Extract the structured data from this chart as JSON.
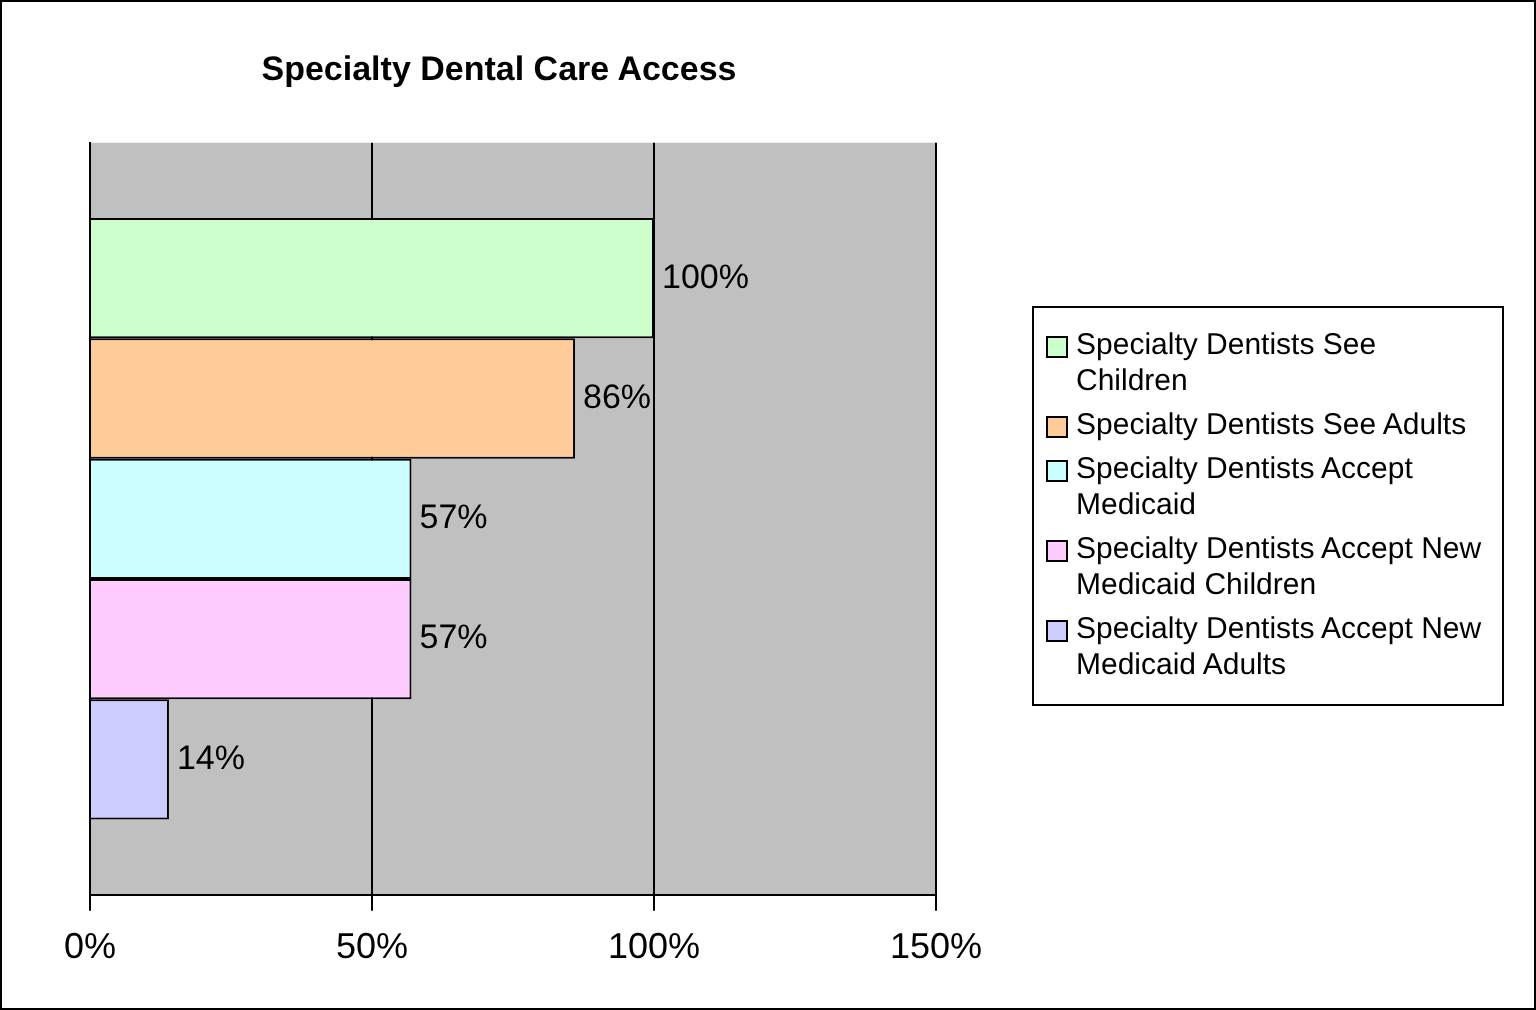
{
  "chart_data": {
    "type": "bar",
    "orientation": "horizontal",
    "title": "Specialty Dental Care Access",
    "categories": [
      null
    ],
    "series": [
      {
        "name": "Specialty Dentists See Children",
        "color": "#ccffcc",
        "values": [
          100
        ]
      },
      {
        "name": "Specialty Dentists See Adults",
        "color": "#ffcc99",
        "values": [
          86
        ]
      },
      {
        "name": "Specialty Dentists Accept Medicaid",
        "color": "#ccffff",
        "values": [
          57
        ]
      },
      {
        "name": "Specialty Dentists Accept New Medicaid Children",
        "color": "#ffccff",
        "values": [
          57
        ]
      },
      {
        "name": "Specialty Dentists Accept New Medicaid Adults",
        "color": "#ccccff",
        "values": [
          14
        ]
      }
    ],
    "value_labels": [
      "100%",
      "86%",
      "57%",
      "57%",
      "14%"
    ],
    "xlim": [
      0,
      150
    ],
    "xticks": [
      {
        "value": 0,
        "label": "0%"
      },
      {
        "value": 50,
        "label": "50%"
      },
      {
        "value": 100,
        "label": "100%"
      },
      {
        "value": 150,
        "label": "150%"
      }
    ],
    "grid": "x",
    "legend": "right"
  }
}
